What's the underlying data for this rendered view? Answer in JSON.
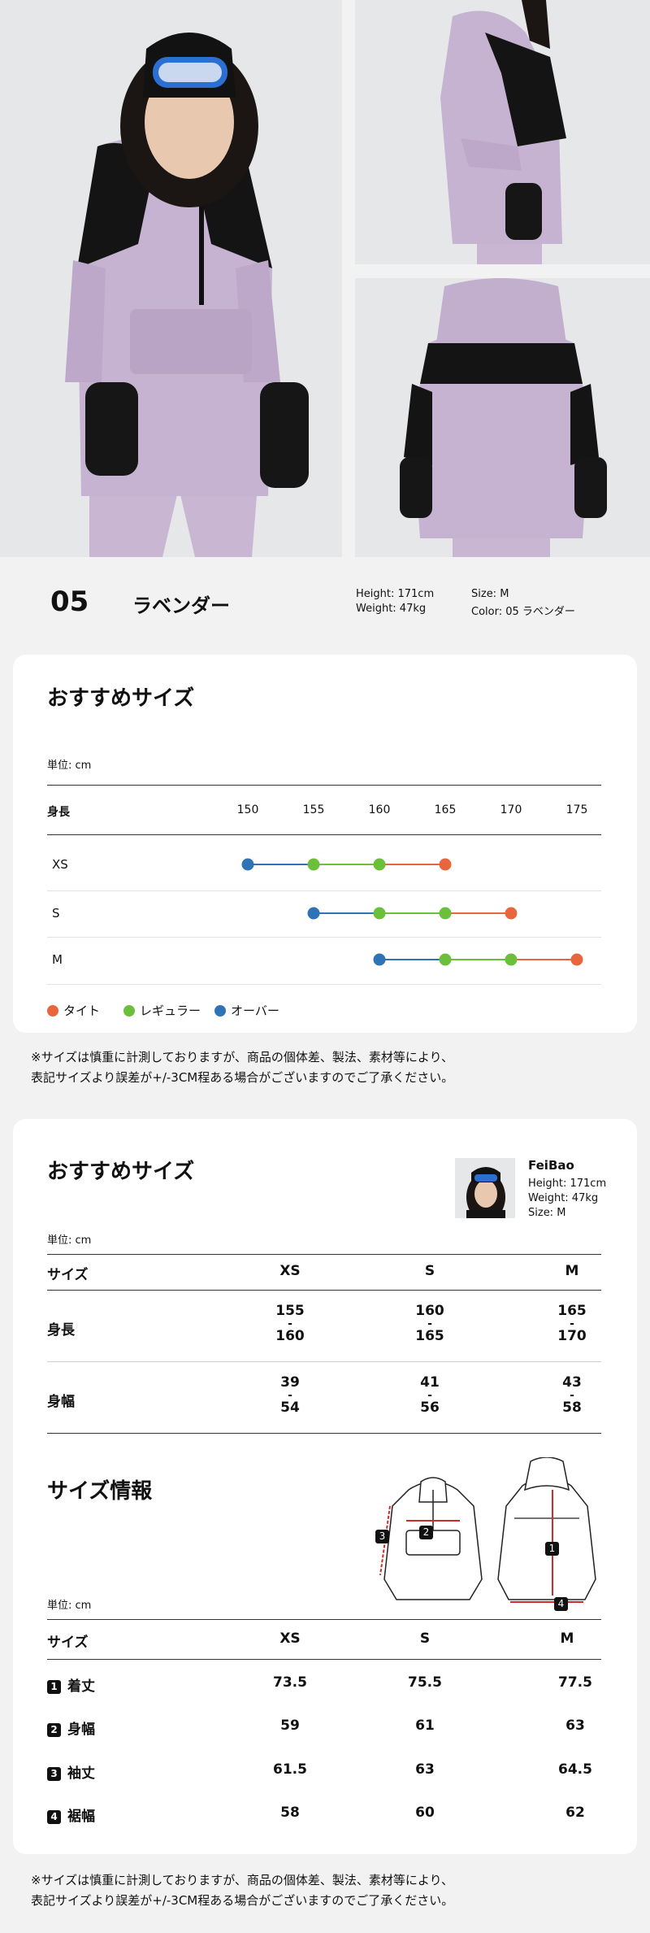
{
  "product": {
    "number": "05",
    "color_name": "ラベンダー",
    "model_height": "Height: 171cm",
    "model_weight": "Weight: 47kg",
    "size": "Size: M",
    "color": "Color: 05 ラベンダー"
  },
  "recommend_chart": {
    "title": "おすすめサイズ",
    "unit": "単位: cm",
    "axis_label": "身長",
    "legend": [
      {
        "label": "タイト",
        "color": "#e8663d"
      },
      {
        "label": "レギュラー",
        "color": "#6bbf3a"
      },
      {
        "label": "オーバー",
        "color": "#2f72b5"
      }
    ]
  },
  "chart_data": {
    "type": "scatter",
    "title": "おすすめサイズ",
    "xlabel": "身長",
    "x_ticks": [
      150,
      155,
      160,
      165,
      170,
      175
    ],
    "xlim": [
      150,
      175
    ],
    "categories": [
      "XS",
      "S",
      "M"
    ],
    "rows": [
      {
        "size": "XS",
        "over": 150,
        "regular": [
          155,
          160
        ],
        "tight": 165
      },
      {
        "size": "S",
        "over": 155,
        "regular": [
          160,
          165
        ],
        "tight": 170
      },
      {
        "size": "M",
        "over": 160,
        "regular": [
          165,
          170
        ],
        "tight": 175
      }
    ]
  },
  "disclaimer": {
    "line1": "※サイズは慎重に計測しておりますが、商品の個体差、製法、素材等により、",
    "line2": "表記サイズより誤差が+/-3CM程ある場合がございますのでご了承ください。"
  },
  "recommend_table": {
    "title": "おすすめサイズ",
    "unit": "単位: cm",
    "model": {
      "name": "FeiBao",
      "height": "Height: 171cm",
      "weight": "Weight: 47kg",
      "size": "Size: M"
    },
    "header": [
      "サイズ",
      "XS",
      "S",
      "M"
    ],
    "rows": [
      {
        "label": "身長",
        "values": [
          [
            "155",
            "160"
          ],
          [
            "160",
            "165"
          ],
          [
            "165",
            "170"
          ]
        ]
      },
      {
        "label": "身幅",
        "values": [
          [
            "39",
            "54"
          ],
          [
            "41",
            "56"
          ],
          [
            "43",
            "58"
          ]
        ]
      }
    ],
    "dash": "-"
  },
  "size_info": {
    "title": "サイズ情報",
    "unit": "単位: cm",
    "header": [
      "サイズ",
      "XS",
      "S",
      "M"
    ],
    "rows": [
      {
        "num": "1",
        "label": "着丈",
        "values": [
          "73.5",
          "75.5",
          "77.5"
        ]
      },
      {
        "num": "2",
        "label": "身幅",
        "values": [
          "59",
          "61",
          "63"
        ]
      },
      {
        "num": "3",
        "label": "袖丈",
        "values": [
          "61.5",
          "63",
          "64.5"
        ]
      },
      {
        "num": "4",
        "label": "裾幅",
        "values": [
          "58",
          "60",
          "62"
        ]
      }
    ],
    "diagram_markers": [
      "1",
      "2",
      "3",
      "4"
    ]
  }
}
